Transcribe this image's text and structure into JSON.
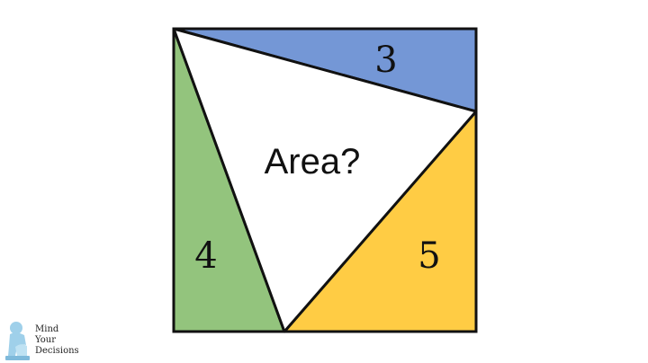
{
  "puzzle": {
    "question": "Area?",
    "regions": [
      {
        "name": "top-triangle",
        "label": "3",
        "color": "#7497d6"
      },
      {
        "name": "left-triangle",
        "label": "4",
        "color": "#93c47d"
      },
      {
        "name": "bottom-right-triangle",
        "label": "5",
        "color": "#ffcc44"
      }
    ],
    "center_color": "#ffffff",
    "outline_color": "#111111"
  },
  "logo": {
    "line1": "Mind",
    "line2": "Your",
    "line3": "Decisions",
    "icon": "thinker-statue-icon",
    "icon_color": "#9fd0ea"
  }
}
